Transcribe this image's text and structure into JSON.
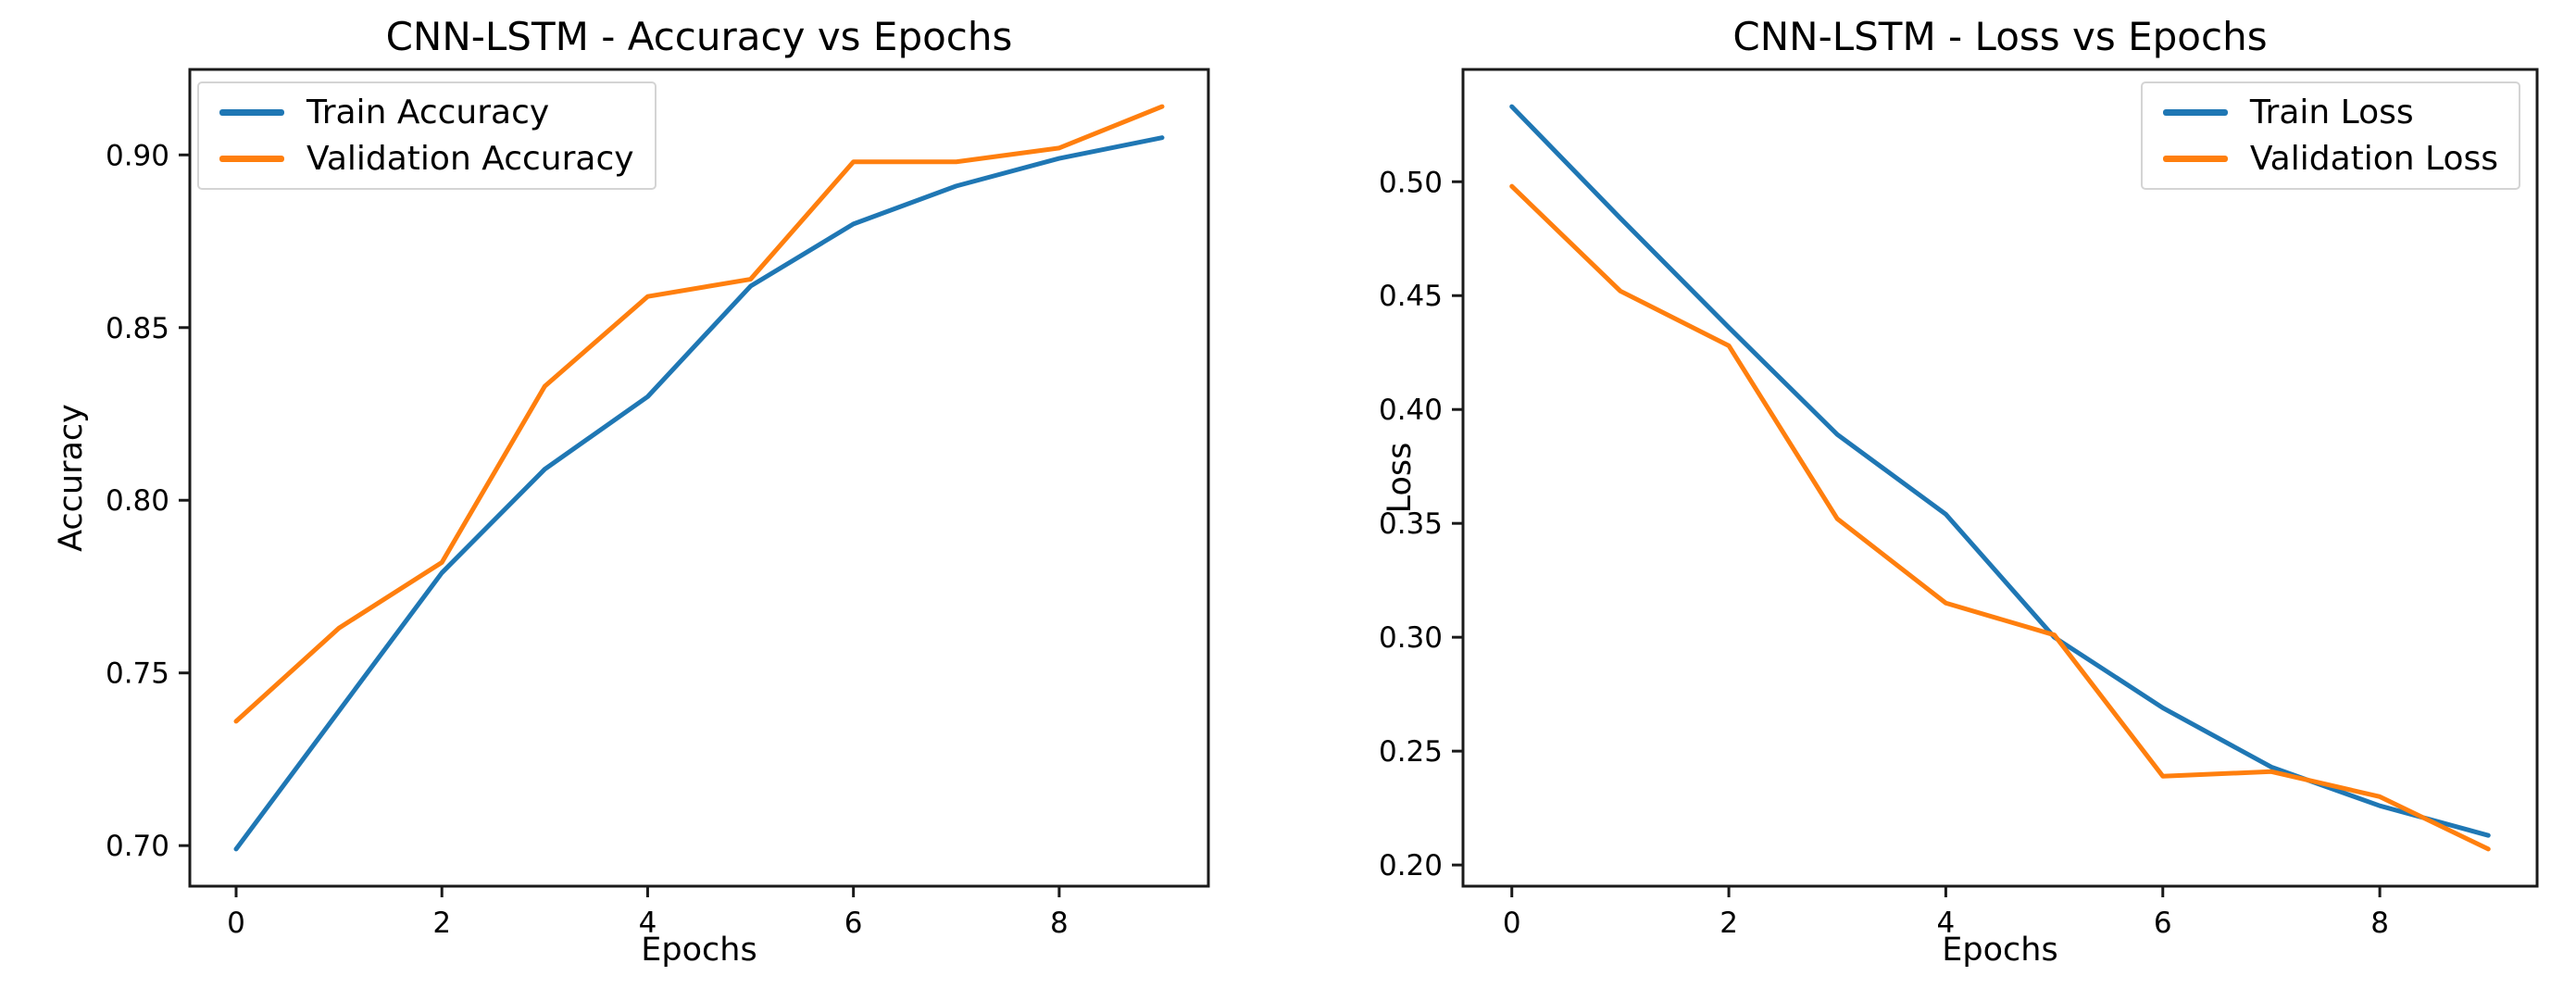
{
  "figure": {
    "background_color": "#ffffff",
    "text_color": "#000000",
    "spine_color": "#1a1a1a"
  },
  "chart_data": [
    {
      "type": "line",
      "title": "CNN-LSTM - Accuracy vs Epochs",
      "xlabel": "Epochs",
      "ylabel": "Accuracy",
      "grid": false,
      "legend_position": "upper left",
      "x": [
        0,
        1,
        2,
        3,
        4,
        5,
        6,
        7,
        8,
        9
      ],
      "series": [
        {
          "name": "Train Accuracy",
          "color": "#1f77b4",
          "values": [
            0.699,
            0.739,
            0.779,
            0.809,
            0.83,
            0.862,
            0.88,
            0.891,
            0.899,
            0.905
          ]
        },
        {
          "name": "Validation Accuracy",
          "color": "#ff7f0e",
          "values": [
            0.736,
            0.763,
            0.782,
            0.833,
            0.859,
            0.864,
            0.898,
            0.898,
            0.902,
            0.914
          ]
        }
      ],
      "xticks": [
        0,
        2,
        4,
        6,
        8
      ],
      "xtick_labels": [
        "0",
        "2",
        "4",
        "6",
        "8"
      ],
      "yticks": [
        0.7,
        0.75,
        0.8,
        0.85,
        0.9
      ],
      "ytick_labels": [
        "0.70",
        "0.75",
        "0.80",
        "0.85",
        "0.90"
      ],
      "xlim": [
        -0.45,
        9.45
      ],
      "ylim": [
        0.68825,
        0.92475
      ]
    },
    {
      "type": "line",
      "title": "CNN-LSTM - Loss vs Epochs",
      "xlabel": "Epochs",
      "ylabel": "Loss",
      "grid": false,
      "legend_position": "upper right",
      "x": [
        0,
        1,
        2,
        3,
        4,
        5,
        6,
        7,
        8,
        9
      ],
      "series": [
        {
          "name": "Train Loss",
          "color": "#1f77b4",
          "values": [
            0.533,
            0.484,
            0.436,
            0.389,
            0.354,
            0.3,
            0.269,
            0.243,
            0.226,
            0.213
          ]
        },
        {
          "name": "Validation Loss",
          "color": "#ff7f0e",
          "values": [
            0.498,
            0.452,
            0.428,
            0.352,
            0.315,
            0.301,
            0.239,
            0.241,
            0.23,
            0.207
          ]
        }
      ],
      "xticks": [
        0,
        2,
        4,
        6,
        8
      ],
      "xtick_labels": [
        "0",
        "2",
        "4",
        "6",
        "8"
      ],
      "yticks": [
        0.2,
        0.25,
        0.3,
        0.35,
        0.4,
        0.45,
        0.5
      ],
      "ytick_labels": [
        "0.20",
        "0.25",
        "0.30",
        "0.35",
        "0.40",
        "0.45",
        "0.50"
      ],
      "xlim": [
        -0.45,
        9.45
      ],
      "ylim": [
        0.1907,
        0.5493
      ]
    }
  ]
}
